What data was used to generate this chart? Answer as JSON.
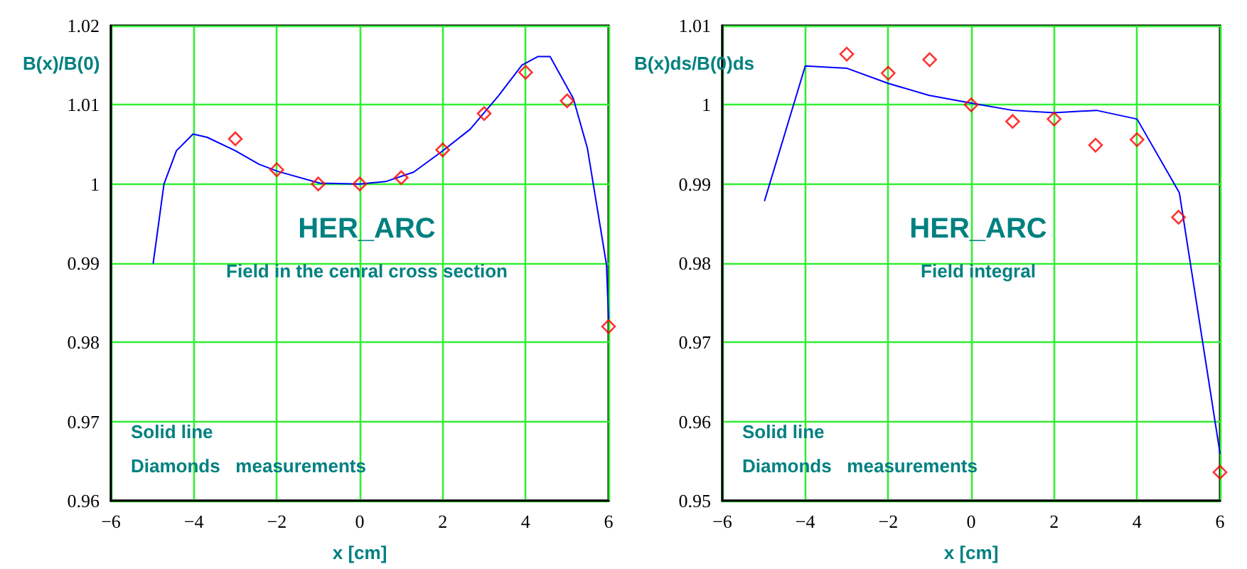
{
  "chart_data": [
    {
      "type": "line",
      "title": "HER_ARC",
      "subtitle": "Field in the cenral cross section",
      "xlabel": "x [cm]",
      "ylabel": "B(x)/B(0)",
      "annotations": [
        "Solid line",
        "Diamonds   measurements"
      ],
      "xlim": [
        -6,
        6
      ],
      "xticks": [
        -6,
        -4,
        -2,
        0,
        2,
        4,
        6
      ],
      "ylim": [
        0.96,
        1.02
      ],
      "yticks": [
        0.96,
        0.97,
        0.98,
        0.99,
        1,
        1.01,
        1.02
      ],
      "grid": true,
      "series": [
        {
          "type": "line",
          "color": "#0000ff",
          "marker": "none",
          "line_style": "solid",
          "x": [
            -4.98,
            -4.72,
            -4.42,
            -4.02,
            -3.68,
            -3.0,
            -2.43,
            -1.98,
            -0.96,
            0,
            0.62,
            1.3,
            1.98,
            2.66,
            3.34,
            3.91,
            4.3,
            4.59,
            5.15,
            5.49,
            5.95,
            6
          ],
          "values": [
            0.99,
            1.0,
            1.0042,
            1.0063,
            1.0059,
            1.0042,
            1.0025,
            1.0016,
            1.0001,
            1.0,
            1.0003,
            1.0015,
            1.0041,
            1.0069,
            1.0111,
            1.015,
            1.0161,
            1.0161,
            1.0108,
            1.0045,
            0.9898,
            0.983
          ]
        },
        {
          "type": "scatter",
          "color": "#ff0000",
          "marker": "diamond",
          "x": [
            -3,
            -2,
            -1,
            0,
            1,
            2,
            3,
            4,
            5,
            6
          ],
          "values": [
            1.0057,
            1.0018,
            1.0,
            1.0,
            1.0008,
            1.0043,
            1.0089,
            1.0141,
            1.0105,
            0.982
          ]
        }
      ]
    },
    {
      "type": "line",
      "title": "HER_ARC",
      "subtitle": "Field integral",
      "xlabel": "x [cm]",
      "ylabel": "B(x)ds/B(0)ds",
      "annotations": [
        "Solid line",
        "Diamonds   measurements"
      ],
      "xlim": [
        -6,
        6
      ],
      "xticks": [
        -6,
        -4,
        -2,
        0,
        2,
        4,
        6
      ],
      "ylim": [
        0.95,
        1.01
      ],
      "yticks": [
        0.95,
        0.96,
        0.97,
        0.98,
        0.99,
        1,
        1.01
      ],
      "grid": true,
      "series": [
        {
          "type": "line",
          "color": "#0000ff",
          "marker": "none",
          "line_style": "solid",
          "x": [
            -4.98,
            -4.0,
            -2.99,
            -2.0,
            -1.02,
            0,
            1.0,
            2.0,
            3.02,
            4.0,
            5.02,
            6
          ],
          "values": [
            0.9879,
            1.0049,
            1.0046,
            1.0027,
            1.0012,
            1.0002,
            0.9993,
            0.999,
            0.9993,
            0.9982,
            0.9889,
            0.956
          ]
        },
        {
          "type": "scatter",
          "color": "#ff0000",
          "marker": "diamond",
          "x": [
            -3,
            -2,
            -1,
            0,
            1,
            2,
            3,
            4,
            5,
            6
          ],
          "values": [
            1.0064,
            1.004,
            1.0057,
            1.0,
            0.9979,
            0.9982,
            0.9949,
            0.9956,
            0.9858,
            0.9536
          ]
        }
      ]
    }
  ]
}
